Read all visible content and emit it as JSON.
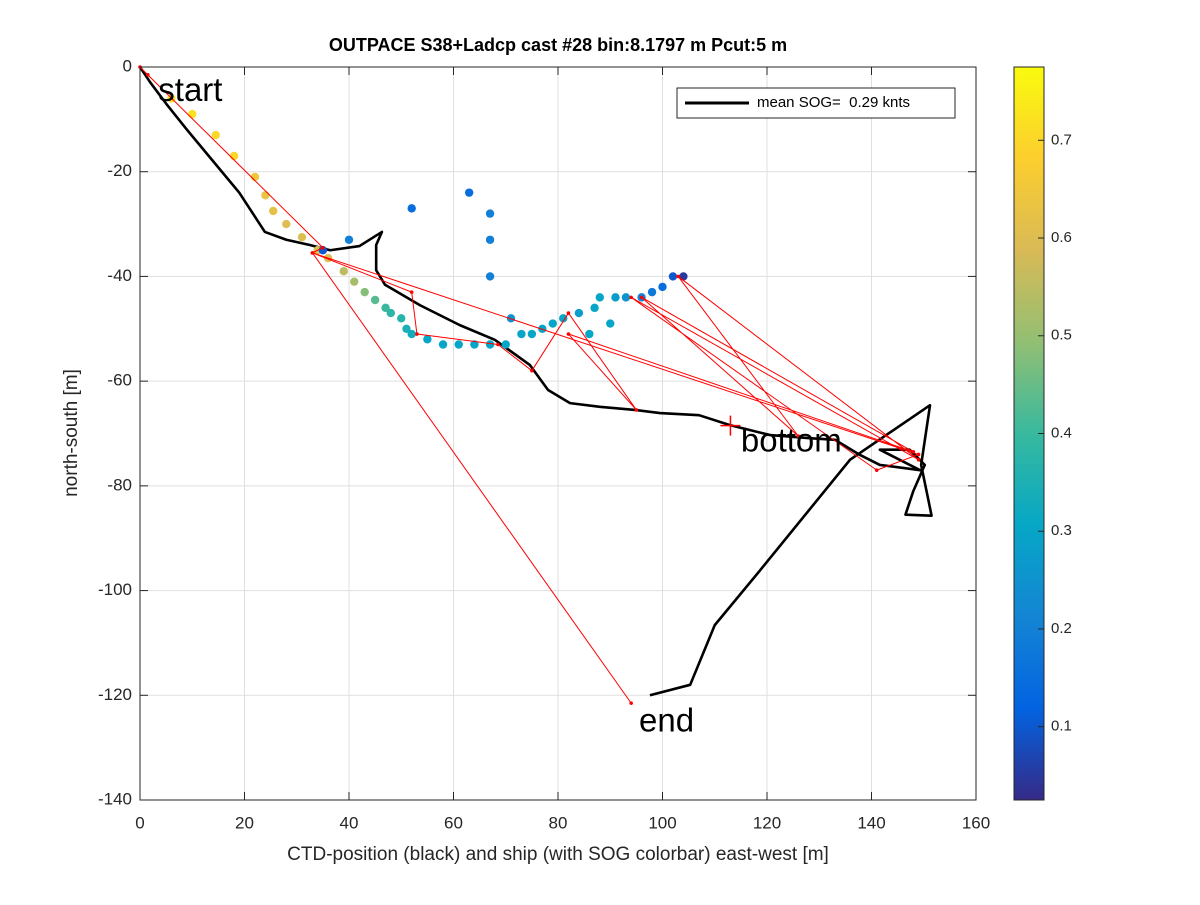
{
  "chart_data": {
    "type": "scatter",
    "title": "OUTPACE S38+Ladcp cast #28 bin:8.1797 m  Pcut:5 m",
    "xlabel": "CTD-position (black) and ship (with SOG colorbar) east-west [m]",
    "ylabel": "north-south [m]",
    "xlim": [
      0,
      160
    ],
    "ylim": [
      -140,
      0
    ],
    "xticks": [
      0,
      20,
      40,
      60,
      80,
      100,
      120,
      140,
      160
    ],
    "yticks": [
      -140,
      -120,
      -100,
      -80,
      -60,
      -40,
      -20,
      0
    ],
    "grid": true,
    "legend": "northeast",
    "track": {
      "name": "mean SOG=  0.29 knts",
      "color": "#000000",
      "x": [
        0,
        2,
        5,
        9,
        14,
        19,
        23.9,
        28,
        32.5,
        36.4,
        42,
        46.3,
        45.2,
        45.2,
        46.9,
        53.6,
        61.2,
        67.9,
        74.6,
        78.1,
        82.3,
        88,
        94.7,
        99.5,
        107,
        112.9,
        120.6,
        128.2,
        133,
        137.8,
        141.6,
        149.3,
        141.6,
        147.3,
        150.2,
        148,
        146.5,
        151.5,
        149.5,
        151.2,
        135.9,
        118.7,
        110,
        105.3,
        97.6
      ],
      "y": [
        0,
        -3,
        -7,
        -12,
        -18,
        -24,
        -31.5,
        -33,
        -34,
        -35,
        -34.2,
        -31.5,
        -34,
        -38.8,
        -41.6,
        -45.5,
        -49.3,
        -52.1,
        -56.9,
        -61.7,
        -64.2,
        -64.9,
        -65.5,
        -66.1,
        -66.5,
        -68.4,
        -70.3,
        -70.9,
        -71.2,
        -74.1,
        -76,
        -77,
        -73.1,
        -73.1,
        -76,
        -81,
        -85.5,
        -85.7,
        -76,
        -64.6,
        -75,
        -96.1,
        -106.6,
        -118,
        -120
      ]
    },
    "ship": {
      "x": [
        6,
        10,
        14.5,
        18,
        22,
        24,
        25.5,
        28,
        31,
        34,
        36,
        39,
        41,
        43,
        45,
        47,
        48,
        50,
        51,
        52,
        55,
        58,
        61,
        64,
        67,
        70,
        73,
        75,
        77,
        79,
        81,
        84,
        87,
        88,
        91,
        93,
        96,
        98,
        100,
        102,
        104,
        40,
        35,
        52,
        63,
        67,
        67,
        67,
        71,
        86,
        90
      ],
      "y": [
        -6,
        -9,
        -13,
        -17,
        -21,
        -24.5,
        -27.5,
        -30,
        -32.5,
        -35,
        -36.5,
        -39,
        -41,
        -43,
        -44.5,
        -46,
        -47,
        -48,
        -50,
        -51,
        -52,
        -53,
        -53,
        -53,
        -53,
        -53,
        -51,
        -51,
        -50,
        -49,
        -48,
        -47,
        -46,
        -44,
        -44,
        -44,
        -44,
        -43,
        -42,
        -40,
        -40,
        -33,
        -35,
        -27,
        -24,
        -28,
        -33,
        -40,
        -48,
        -51,
        -49
      ],
      "values": [
        0.72,
        0.72,
        0.7,
        0.7,
        0.65,
        0.63,
        0.62,
        0.6,
        0.6,
        0.6,
        0.6,
        0.55,
        0.52,
        0.48,
        0.43,
        0.4,
        0.38,
        0.37,
        0.35,
        0.33,
        0.3,
        0.3,
        0.3,
        0.3,
        0.3,
        0.3,
        0.3,
        0.3,
        0.3,
        0.3,
        0.3,
        0.28,
        0.3,
        0.3,
        0.28,
        0.25,
        0.2,
        0.18,
        0.15,
        0.1,
        0.05,
        0.2,
        0.1,
        0.15,
        0.15,
        0.2,
        0.2,
        0.2,
        0.25,
        0.3,
        0.3
      ]
    },
    "red_line": {
      "color": "#ff0000",
      "x": [
        0,
        1.5,
        35,
        33,
        52,
        53,
        68.5,
        75,
        82,
        95,
        82,
        148,
        96,
        126,
        103,
        149,
        94,
        141,
        149,
        33,
        94
      ],
      "y": [
        0,
        -1.5,
        -34.5,
        -35.5,
        -43,
        -51,
        -53,
        -58,
        -47,
        -65.5,
        -51,
        -73.5,
        -44,
        -70.5,
        -40,
        -75,
        -44,
        -77,
        -74,
        -35.5,
        -121.5
      ]
    },
    "colorbar": {
      "clim": [
        0.025,
        0.775
      ],
      "ticks": [
        0.1,
        0.2,
        0.3,
        0.4,
        0.5,
        0.6,
        0.7
      ],
      "colormap": [
        "#352a87",
        "#0363e1",
        "#1485d4",
        "#06a7c6",
        "#38b99e",
        "#92bf73",
        "#d9ba56",
        "#fcce2e",
        "#f9fb0e"
      ]
    },
    "annotations": [
      {
        "text": "start",
        "x": 3.5,
        "y": -2.5
      },
      {
        "text": "bottom",
        "x": 115,
        "y": -69.5
      },
      {
        "text": "end",
        "x": 95.5,
        "y": -123
      }
    ],
    "markers": [
      {
        "x": 113,
        "y": -68.5
      }
    ]
  }
}
